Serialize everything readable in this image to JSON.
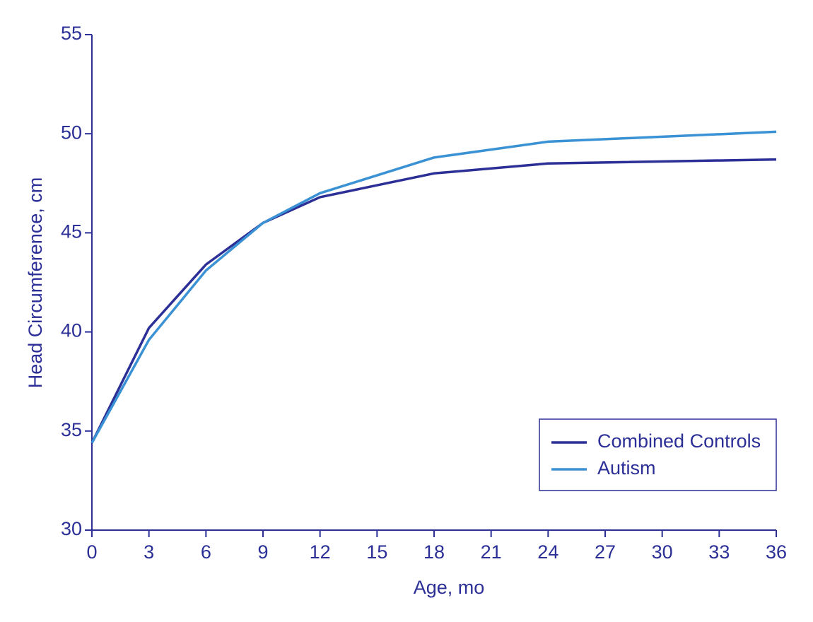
{
  "chart_data": {
    "type": "line",
    "x_label": "Age, mo",
    "y_label": "Head Circumference, cm",
    "x": [
      0,
      3,
      6,
      9,
      12,
      18,
      24,
      36
    ],
    "series": [
      {
        "name": "Combined Controls",
        "color": "#2b2f96",
        "values": [
          34.4,
          40.2,
          43.4,
          45.5,
          46.8,
          48.0,
          48.5,
          48.7
        ]
      },
      {
        "name": "Autism",
        "color": "#3a92d4",
        "values": [
          34.4,
          39.6,
          43.1,
          45.5,
          47.0,
          48.8,
          49.6,
          50.1
        ]
      }
    ],
    "xlim": [
      0,
      36
    ],
    "xticks": [
      0,
      3,
      6,
      9,
      12,
      15,
      18,
      21,
      24,
      27,
      30,
      33,
      36
    ],
    "ylim": [
      30,
      55
    ],
    "yticks": [
      30,
      35,
      40,
      45,
      50,
      55
    ],
    "grid": false,
    "legend": "lower right"
  }
}
